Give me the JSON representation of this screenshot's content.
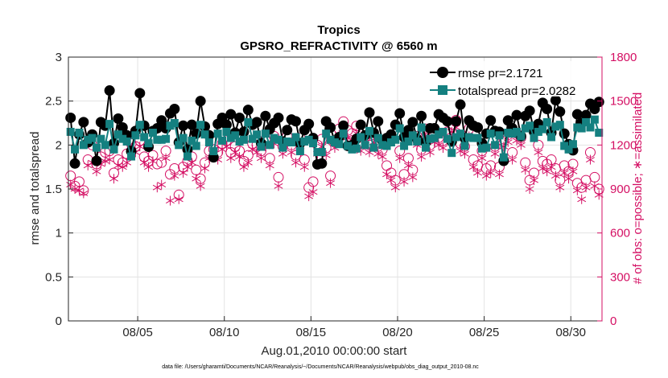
{
  "chart_data": {
    "type": "line",
    "title": "Tropics",
    "subtitle": "GPSRO_REFRACTIVITY @ 6560 m",
    "xlabel": "Aug.01,2010 00:00:00 start",
    "ylabel": "rmse and totalspread",
    "y2label": "# of obs: o=possible; ∗=assimilated",
    "xlim": [
      1,
      31.8
    ],
    "ylim": [
      0,
      3
    ],
    "y2lim": [
      0,
      1800
    ],
    "x_ticks": [
      5,
      10,
      15,
      20,
      25,
      30
    ],
    "x_tick_labels": [
      "08/05",
      "08/10",
      "08/15",
      "08/20",
      "08/25",
      "08/30"
    ],
    "y_ticks": [
      0,
      0.5,
      1,
      1.5,
      2,
      2.5,
      3
    ],
    "y_tick_labels": [
      "0",
      "0.5",
      "1",
      "1.5",
      "2",
      "2.5",
      "3"
    ],
    "y2_ticks": [
      0,
      300,
      600,
      900,
      1200,
      1500,
      1800
    ],
    "y2_tick_labels": [
      "0",
      "300",
      "600",
      "900",
      "1200",
      "1500",
      "1800"
    ],
    "grid": true,
    "legend_position": "top-right",
    "series": [
      {
        "name": "rmse pr=2.1721",
        "axis": "left",
        "color": "#000000",
        "marker": "circle",
        "x": [
          1.125,
          1.375,
          1.625,
          1.875,
          2.125,
          2.375,
          2.625,
          2.875,
          3.125,
          3.375,
          3.625,
          3.875,
          4.125,
          4.375,
          4.625,
          4.875,
          5.125,
          5.375,
          5.625,
          5.875,
          6.125,
          6.375,
          6.625,
          6.875,
          7.125,
          7.375,
          7.625,
          7.875,
          8.125,
          8.375,
          8.625,
          8.875,
          9.125,
          9.375,
          9.625,
          9.875,
          10.125,
          10.375,
          10.625,
          10.875,
          11.125,
          11.375,
          11.625,
          11.875,
          12.125,
          12.375,
          12.625,
          12.875,
          13.125,
          13.375,
          13.625,
          13.875,
          14.125,
          14.375,
          14.625,
          14.875,
          15.125,
          15.375,
          15.625,
          15.875,
          16.125,
          16.375,
          16.625,
          16.875,
          17.125,
          17.375,
          17.625,
          17.875,
          18.125,
          18.375,
          18.625,
          18.875,
          19.125,
          19.375,
          19.625,
          19.875,
          20.125,
          20.375,
          20.625,
          20.875,
          21.125,
          21.375,
          21.625,
          21.875,
          22.125,
          22.375,
          22.625,
          22.875,
          23.125,
          23.375,
          23.625,
          23.875,
          24.125,
          24.375,
          24.625,
          24.875,
          25.125,
          25.375,
          25.625,
          25.875,
          26.125,
          26.375,
          26.625,
          26.875,
          27.125,
          27.375,
          27.625,
          27.875,
          28.125,
          28.375,
          28.625,
          28.875,
          29.125,
          29.375,
          29.625,
          29.875,
          30.125,
          30.375,
          30.625,
          30.875,
          31.125,
          31.375,
          31.625
        ],
        "values": [
          2.31,
          1.79,
          2.12,
          2.26,
          2.03,
          2.12,
          1.82,
          2.26,
          2.22,
          2.62,
          2.02,
          2.3,
          2.2,
          2.11,
          1.93,
          2.16,
          2.59,
          2.22,
          1.98,
          2.16,
          2.19,
          2.28,
          2.19,
          2.36,
          2.41,
          2.03,
          2.22,
          1.95,
          2.23,
          2.13,
          2.5,
          2.21,
          2.11,
          1.86,
          2.24,
          2.31,
          2.23,
          2.35,
          2.14,
          2.31,
          2.15,
          2.4,
          2.23,
          2.26,
          2.02,
          2.33,
          2.18,
          2.25,
          2.31,
          2.04,
          2.17,
          2.29,
          2.27,
          2.02,
          2.17,
          2.24,
          2.08,
          1.78,
          1.79,
          2.27,
          2.2,
          2.04,
          2.09,
          2.22,
          1.99,
          2.0,
          2.07,
          2.23,
          2.11,
          2.37,
          2.14,
          2.27,
          2.05,
          2.08,
          2.12,
          2.23,
          2.36,
          2.09,
          2.17,
          2.26,
          2.07,
          2.33,
          2.03,
          2.19,
          2.19,
          2.35,
          2.31,
          2.27,
          2.04,
          2.27,
          2.46,
          2.08,
          2.28,
          2.22,
          2.2,
          2.02,
          2.13,
          2.28,
          2.16,
          2.15,
          1.82,
          2.28,
          2.19,
          2.34,
          2.1,
          2.33,
          2.39,
          2.15,
          2.24,
          2.48,
          2.41,
          2.14,
          2.51,
          2.38,
          2.13,
          2.01,
          1.94,
          2.35,
          2.25,
          2.34,
          2.47,
          2.41,
          2.49
        ]
      },
      {
        "name": "totalspread pr=2.0282",
        "axis": "left",
        "color": "#148080",
        "marker": "square",
        "x": [
          1.125,
          1.375,
          1.625,
          1.875,
          2.125,
          2.375,
          2.625,
          2.875,
          3.125,
          3.375,
          3.625,
          3.875,
          4.125,
          4.375,
          4.625,
          4.875,
          5.125,
          5.375,
          5.625,
          5.875,
          6.125,
          6.375,
          6.625,
          6.875,
          7.125,
          7.375,
          7.625,
          7.875,
          8.125,
          8.375,
          8.625,
          8.875,
          9.125,
          9.375,
          9.625,
          9.875,
          10.125,
          10.375,
          10.625,
          10.875,
          11.125,
          11.375,
          11.625,
          11.875,
          12.125,
          12.375,
          12.625,
          12.875,
          13.125,
          13.375,
          13.625,
          13.875,
          14.125,
          14.375,
          14.625,
          14.875,
          15.125,
          15.375,
          15.625,
          15.875,
          16.125,
          16.375,
          16.625,
          16.875,
          17.125,
          17.375,
          17.625,
          17.875,
          18.125,
          18.375,
          18.625,
          18.875,
          19.125,
          19.375,
          19.625,
          19.875,
          20.125,
          20.375,
          20.625,
          20.875,
          21.125,
          21.375,
          21.625,
          21.875,
          22.125,
          22.375,
          22.625,
          22.875,
          23.125,
          23.375,
          23.625,
          23.875,
          24.125,
          24.375,
          24.625,
          24.875,
          25.125,
          25.375,
          25.625,
          25.875,
          26.125,
          26.375,
          26.625,
          26.875,
          27.125,
          27.375,
          27.625,
          27.875,
          28.125,
          28.375,
          28.625,
          28.875,
          29.125,
          29.375,
          29.625,
          29.875,
          30.125,
          30.375,
          30.625,
          30.875,
          31.125,
          31.375,
          31.625
        ],
        "values": [
          2.15,
          1.95,
          2.14,
          2.0,
          2.06,
          2.08,
          1.97,
          2.07,
          2.0,
          2.24,
          1.95,
          2.12,
          2.07,
          2.04,
          1.87,
          2.11,
          2.23,
          2.09,
          2.02,
          2.14,
          2.06,
          2.06,
          2.07,
          2.22,
          2.25,
          2.0,
          2.08,
          1.87,
          2.05,
          1.99,
          2.23,
          2.12,
          2.03,
          1.93,
          2.13,
          2.05,
          2.15,
          2.08,
          2.11,
          2.04,
          2.06,
          2.26,
          2.07,
          2.12,
          1.98,
          2.13,
          2.0,
          2.08,
          2.06,
          1.97,
          2.04,
          2.03,
          2.09,
          1.93,
          2.04,
          2.06,
          2.02,
          1.92,
          1.92,
          2.13,
          2.06,
          2.03,
          2.01,
          2.13,
          1.99,
          1.95,
          1.96,
          2.09,
          2.0,
          2.16,
          1.97,
          2.08,
          2.0,
          1.99,
          2.03,
          2.06,
          2.19,
          1.99,
          2.04,
          2.11,
          2.04,
          2.2,
          1.97,
          2.07,
          2.08,
          2.12,
          2.15,
          2.07,
          1.91,
          2.09,
          2.13,
          1.99,
          2.09,
          2.08,
          2.08,
          1.96,
          1.97,
          2.13,
          2.0,
          2.11,
          1.86,
          2.14,
          2.13,
          2.15,
          2.1,
          2.19,
          2.22,
          2.08,
          2.15,
          2.18,
          2.26,
          2.09,
          2.21,
          2.23,
          1.99,
          1.95,
          2.01,
          2.2,
          2.19,
          2.26,
          2.2,
          2.29,
          2.14
        ]
      },
      {
        "name": "possible",
        "axis": "right",
        "color": "#d40f63",
        "marker": "open-circle",
        "x": [
          1.125,
          1.375,
          1.625,
          1.875,
          2.125,
          2.375,
          2.625,
          2.875,
          3.125,
          3.375,
          3.625,
          3.875,
          4.125,
          4.375,
          4.625,
          4.875,
          5.125,
          5.375,
          5.625,
          5.875,
          6.125,
          6.375,
          6.625,
          6.875,
          7.125,
          7.375,
          7.625,
          7.875,
          8.125,
          8.375,
          8.625,
          8.875,
          9.125,
          9.375,
          9.625,
          9.875,
          10.125,
          10.375,
          10.625,
          10.875,
          11.125,
          11.375,
          11.625,
          11.875,
          12.125,
          12.375,
          12.625,
          12.875,
          13.125,
          13.375,
          13.625,
          13.875,
          14.125,
          14.375,
          14.625,
          14.875,
          15.125,
          15.375,
          15.625,
          15.875,
          16.125,
          16.375,
          16.625,
          16.875,
          17.125,
          17.375,
          17.625,
          17.875,
          18.125,
          18.375,
          18.625,
          18.875,
          19.125,
          19.375,
          19.625,
          19.875,
          20.125,
          20.375,
          20.625,
          20.875,
          21.125,
          21.375,
          21.625,
          21.875,
          22.125,
          22.375,
          22.625,
          22.875,
          23.125,
          23.375,
          23.625,
          23.875,
          24.125,
          24.375,
          24.625,
          24.875,
          25.125,
          25.375,
          25.625,
          25.875,
          26.125,
          26.375,
          26.625,
          26.875,
          27.125,
          27.375,
          27.625,
          27.875,
          28.125,
          28.375,
          28.625,
          28.875,
          29.125,
          29.375,
          29.625,
          29.875,
          30.125,
          30.375,
          30.625,
          30.875,
          31.125,
          31.375,
          31.625
        ],
        "values": [
          990,
          920,
          950,
          890,
          1100,
          1200,
          1070,
          1120,
          1150,
          1160,
          1010,
          1100,
          1080,
          1140,
          1210,
          1190,
          1230,
          1120,
          1090,
          1130,
          1070,
          1080,
          1160,
          1000,
          1040,
          860,
          1050,
          1090,
          1120,
          1030,
          970,
          1080,
          1160,
          1170,
          1150,
          1210,
          1230,
          1150,
          1190,
          1160,
          1090,
          1130,
          1210,
          1200,
          1160,
          1240,
          1110,
          1260,
          980,
          1190,
          1260,
          1200,
          1130,
          1250,
          1100,
          910,
          950,
          1200,
          1240,
          1180,
          990,
          1230,
          1310,
          1360,
          1300,
          1280,
          1330,
          1210,
          1250,
          1200,
          1270,
          1190,
          1170,
          1060,
          1010,
          960,
          1160,
          1000,
          1110,
          1030,
          1260,
          1170,
          1310,
          1200,
          1270,
          1250,
          1230,
          1290,
          1340,
          1370,
          1210,
          1190,
          1310,
          1100,
          1060,
          1160,
          1040,
          1060,
          1190,
          1050,
          1240,
          1270,
          1150,
          1280,
          1250,
          1080,
          960,
          1010,
          1200,
          1090,
          1070,
          1100,
          1040,
          960,
          1060,
          1020,
          1070,
          940,
          910,
          960,
          1150,
          980,
          900
        ]
      },
      {
        "name": "assimilated",
        "axis": "right",
        "color": "#d40f63",
        "marker": "asterisk",
        "x": [
          1.125,
          1.375,
          1.625,
          1.875,
          2.125,
          2.375,
          2.625,
          2.875,
          3.125,
          3.375,
          3.625,
          3.875,
          4.125,
          4.375,
          4.625,
          4.875,
          5.125,
          5.375,
          5.625,
          5.875,
          6.125,
          6.375,
          6.625,
          6.875,
          7.125,
          7.375,
          7.625,
          7.875,
          8.125,
          8.375,
          8.625,
          8.875,
          9.125,
          9.375,
          9.625,
          9.875,
          10.125,
          10.375,
          10.625,
          10.875,
          11.125,
          11.375,
          11.625,
          11.875,
          12.125,
          12.375,
          12.625,
          12.875,
          13.125,
          13.375,
          13.625,
          13.875,
          14.125,
          14.375,
          14.625,
          14.875,
          15.125,
          15.375,
          15.625,
          15.875,
          16.125,
          16.375,
          16.625,
          16.875,
          17.125,
          17.375,
          17.625,
          17.875,
          18.125,
          18.375,
          18.625,
          18.875,
          19.125,
          19.375,
          19.625,
          19.875,
          20.125,
          20.375,
          20.625,
          20.875,
          21.125,
          21.375,
          21.625,
          21.875,
          22.125,
          22.375,
          22.625,
          22.875,
          23.125,
          23.375,
          23.625,
          23.875,
          24.125,
          24.375,
          24.625,
          24.875,
          25.125,
          25.375,
          25.625,
          25.875,
          26.125,
          26.375,
          26.625,
          26.875,
          27.125,
          27.375,
          27.625,
          27.875,
          28.125,
          28.375,
          28.625,
          28.875,
          29.125,
          29.375,
          29.625,
          29.875,
          30.125,
          30.375,
          30.625,
          30.875,
          31.125,
          31.375,
          31.625
        ],
        "values": [
          930,
          900,
          890,
          870,
          1060,
          1080,
          1020,
          1070,
          1090,
          1100,
          970,
          1060,
          1050,
          1080,
          1170,
          1150,
          1190,
          1080,
          1050,
          1090,
          910,
          930,
          1110,
          820,
          990,
          830,
          1010,
          1050,
          1080,
          970,
          920,
          1040,
          1110,
          1120,
          1100,
          1170,
          1190,
          1110,
          1150,
          1120,
          1050,
          1080,
          1170,
          1150,
          1110,
          1190,
          1060,
          1210,
          920,
          1140,
          1210,
          1150,
          1080,
          1190,
          1050,
          850,
          880,
          1140,
          1190,
          1130,
          940,
          1180,
          1270,
          1310,
          1250,
          1230,
          1280,
          1160,
          1200,
          1150,
          1220,
          1140,
          1120,
          1000,
          960,
          910,
          1110,
          950,
          1060,
          980,
          1200,
          1120,
          1260,
          1150,
          1220,
          1200,
          1180,
          1240,
          1290,
          1320,
          1160,
          1140,
          1260,
          1050,
          1010,
          1110,
          990,
          1010,
          1140,
          1000,
          1190,
          1220,
          1100,
          1230,
          1200,
          1030,
          900,
          960,
          1150,
          1040,
          1020,
          1050,
          990,
          910,
          1010,
          970,
          1020,
          890,
          830,
          910,
          1100,
          920,
          860
        ]
      }
    ]
  },
  "footer": "data file: /Users/gharamti/Documents/NCAR/Reanalysis/~/Documents/NCAR/Reanalysis/webpub/obs_diag_output_2010-08.nc"
}
